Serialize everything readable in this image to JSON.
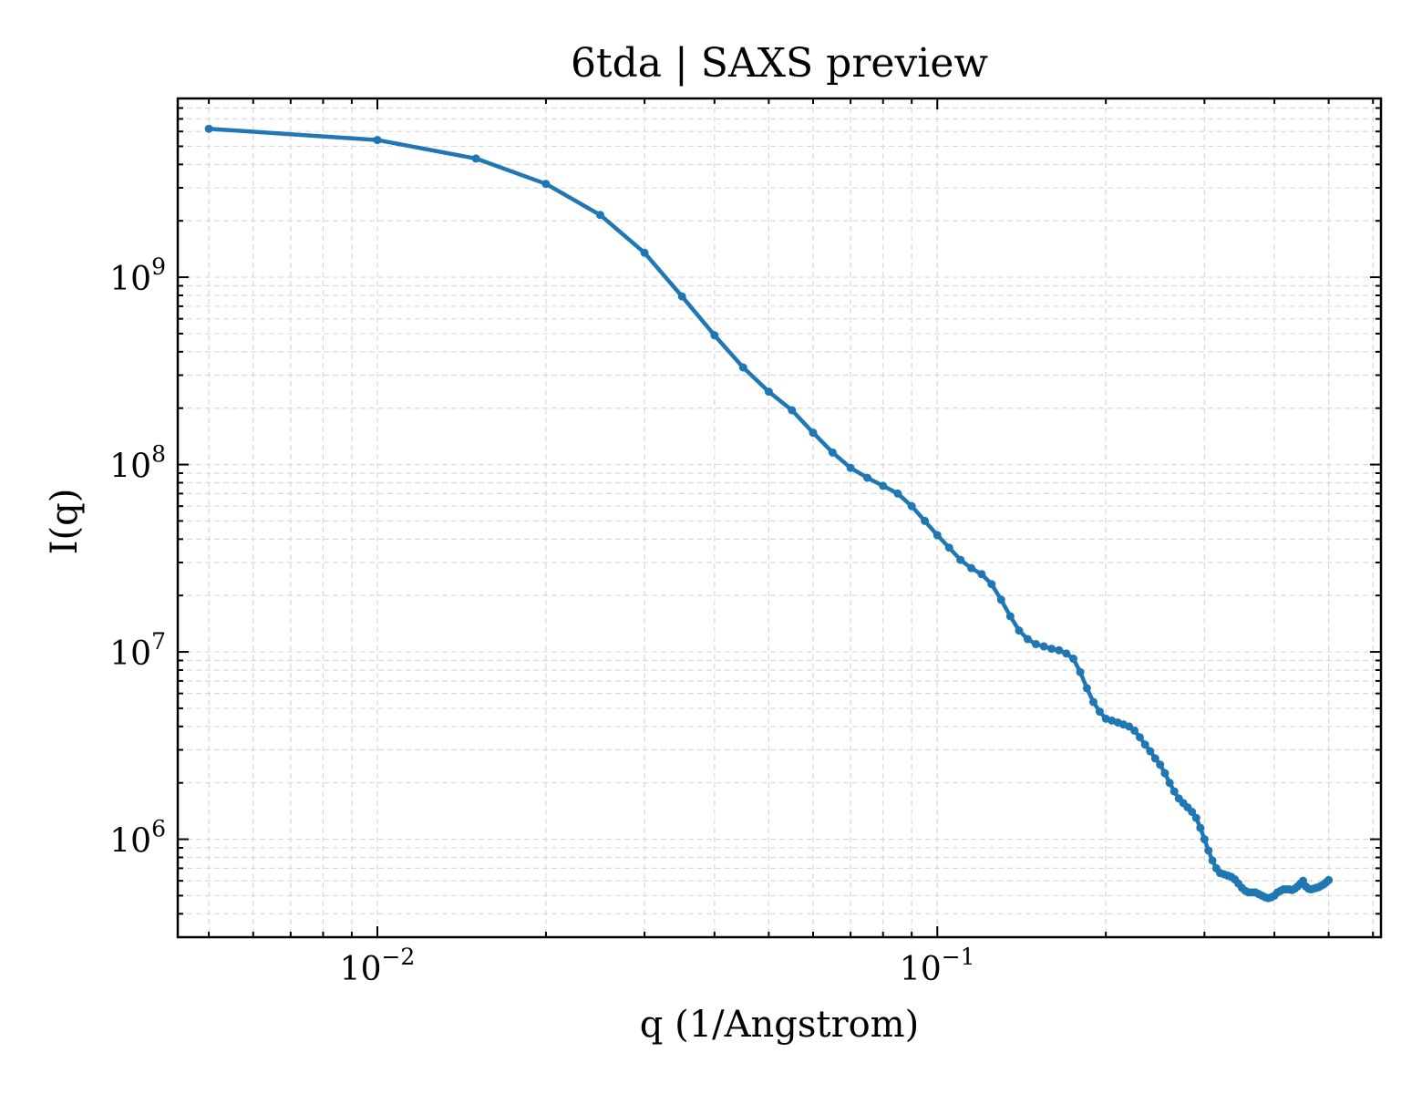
{
  "colors": {
    "series": "#1f77b4",
    "grid": "#d9d9d9",
    "axis": "#000000",
    "background": "#ffffff"
  },
  "chart_data": {
    "type": "line",
    "title": "6tda | SAXS preview",
    "xlabel": "q (1/Angstrom)",
    "ylabel": "I(q)",
    "xscale": "log",
    "yscale": "log",
    "xlim": [
      0.0044,
      0.62
    ],
    "ylim": [
      300000,
      9000000000
    ],
    "grid": true,
    "legend": "none",
    "x_ticks": [
      {
        "base": "10",
        "exp": "−2",
        "value": 0.01
      },
      {
        "base": "10",
        "exp": "−1",
        "value": 0.1
      }
    ],
    "y_ticks": [
      {
        "base": "10",
        "exp": "6",
        "value": 1000000
      },
      {
        "base": "10",
        "exp": "7",
        "value": 10000000
      },
      {
        "base": "10",
        "exp": "8",
        "value": 100000000
      },
      {
        "base": "10",
        "exp": "9",
        "value": 1000000000
      }
    ],
    "series": [
      {
        "x": [
          0.005,
          0.01,
          0.015,
          0.02,
          0.025,
          0.03,
          0.035,
          0.04,
          0.045,
          0.05,
          0.055,
          0.06,
          0.065,
          0.07,
          0.075,
          0.08,
          0.085,
          0.09,
          0.095,
          0.1,
          0.105,
          0.11,
          0.115,
          0.12,
          0.125,
          0.13,
          0.135,
          0.14,
          0.145,
          0.15,
          0.155,
          0.16,
          0.165,
          0.17,
          0.175,
          0.18,
          0.185,
          0.19,
          0.195,
          0.2,
          0.205,
          0.21,
          0.215,
          0.22,
          0.225,
          0.23,
          0.235,
          0.24,
          0.245,
          0.25,
          0.255,
          0.26,
          0.265,
          0.27,
          0.275,
          0.28,
          0.285,
          0.29,
          0.295,
          0.3,
          0.305,
          0.31,
          0.315,
          0.32,
          0.325,
          0.33,
          0.335,
          0.34,
          0.345,
          0.35,
          0.355,
          0.36,
          0.365,
          0.37,
          0.375,
          0.38,
          0.385,
          0.39,
          0.395,
          0.4,
          0.405,
          0.41,
          0.415,
          0.42,
          0.425,
          0.43,
          0.435,
          0.44,
          0.445,
          0.45,
          0.455,
          0.46,
          0.465,
          0.47,
          0.475,
          0.48,
          0.485,
          0.49,
          0.495,
          0.5
        ],
        "y": [
          6200000000,
          5400000000,
          4300000000,
          3150000000,
          2150000000,
          1350000000,
          790000000,
          490000000,
          330000000,
          245000000,
          195000000,
          148000000,
          116000000,
          96000000,
          85000000,
          77000000,
          70000000,
          60000000,
          50000000,
          42000000,
          36000000,
          31000000,
          28000000,
          26000000,
          23000000,
          19000000,
          15500000,
          13000000,
          11700000,
          11000000,
          10700000,
          10400000,
          10200000,
          9800000,
          9200000,
          7800000,
          6400000,
          5400000,
          4800000,
          4400000,
          4300000,
          4200000,
          4100000,
          4000000,
          3800000,
          3500000,
          3200000,
          2950000,
          2700000,
          2500000,
          2250000,
          2000000,
          1800000,
          1650000,
          1560000,
          1480000,
          1400000,
          1300000,
          1150000,
          1000000,
          870000,
          770000,
          700000,
          660000,
          650000,
          640000,
          630000,
          610000,
          580000,
          550000,
          530000,
          520000,
          520000,
          520000,
          510000,
          500000,
          490000,
          485000,
          490000,
          500000,
          520000,
          530000,
          540000,
          540000,
          540000,
          535000,
          545000,
          560000,
          580000,
          600000,
          560000,
          545000,
          540000,
          545000,
          550000,
          555000,
          565000,
          575000,
          590000,
          605000
        ]
      }
    ]
  }
}
